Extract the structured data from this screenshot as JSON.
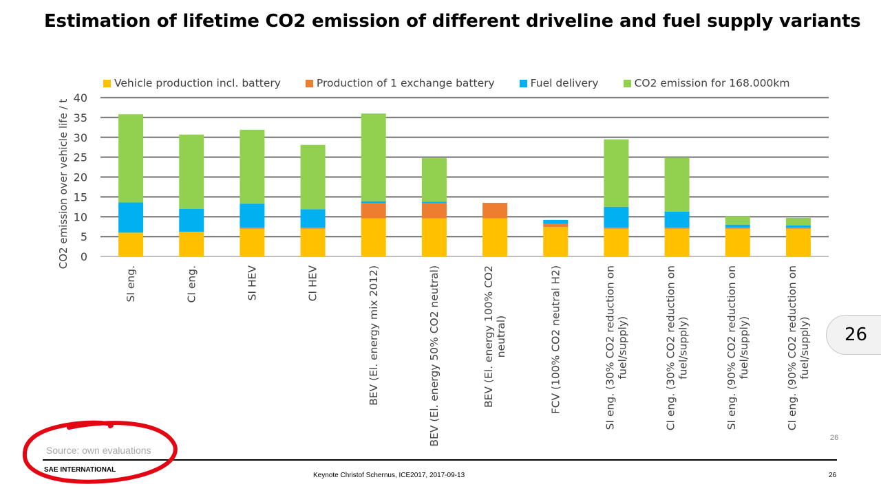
{
  "slide": {
    "title": "Estimation of lifetime CO2 emission of different driveline and fuel supply variants",
    "badge_number": "26",
    "page_number_small": "26",
    "source_note": "Source: own evaluations",
    "organization": "SAE INTERNATIONAL",
    "footer_text": "Keynote Christof Schernus, ICE2017, 2017-09-13",
    "footer_page": "26"
  },
  "colors": {
    "vehicle_production": "#ffc000",
    "exchange_battery": "#ed7d31",
    "fuel_delivery": "#00b0f0",
    "co2_emission": "#92d050",
    "grid": "#808080",
    "annotation": "#e30613"
  },
  "chart_data": {
    "type": "bar",
    "stacked": true,
    "ylabel": "CO2 emission over vehicle life / t",
    "ylim": [
      0,
      40
    ],
    "yticks": [
      0,
      5,
      10,
      15,
      20,
      25,
      30,
      35,
      40
    ],
    "grid": true,
    "legend_position": "top",
    "categories": [
      [
        "SI eng."
      ],
      [
        "CI eng."
      ],
      [
        "SI HEV"
      ],
      [
        "CI HEV"
      ],
      [
        "BEV (El. energy mix 2012)"
      ],
      [
        "BEV (El. energy 50% CO2 neutral)"
      ],
      [
        "BEV (El. energy 100% CO2",
        "neutral)"
      ],
      [
        "FCV (100% CO2 neutral H2)"
      ],
      [
        "SI eng. (30% CO2 reduction on",
        "fuel/supply)"
      ],
      [
        "CI eng. (30% CO2 reduction on",
        "fuel/supply)"
      ],
      [
        "SI eng. (90% CO2 reduction on",
        "fuel/supply)"
      ],
      [
        "CI eng. (90% CO2 reduction on",
        "fuel/supply)"
      ]
    ],
    "series": [
      {
        "name": "Vehicle production incl. battery",
        "color": "#ffc000",
        "values": [
          6.0,
          6.2,
          7.0,
          7.0,
          9.6,
          9.6,
          9.6,
          7.4,
          7.0,
          7.0,
          7.0,
          7.0
        ]
      },
      {
        "name": "Production of 1 exchange battery",
        "color": "#ed7d31",
        "values": [
          0,
          0,
          0.3,
          0.3,
          3.9,
          3.9,
          3.9,
          0.8,
          0.3,
          0.3,
          0.3,
          0.3
        ]
      },
      {
        "name": "Fuel delivery",
        "color": "#00b0f0",
        "values": [
          7.6,
          5.8,
          6.0,
          4.6,
          0.4,
          0.3,
          0,
          1.0,
          5.2,
          4.0,
          0.7,
          0.5
        ]
      },
      {
        "name": "CO2 emission for 168.000km",
        "color": "#92d050",
        "values": [
          22.2,
          18.7,
          18.6,
          16.2,
          22.1,
          11.0,
          0,
          0,
          17.0,
          13.6,
          2.1,
          1.9
        ]
      }
    ]
  }
}
